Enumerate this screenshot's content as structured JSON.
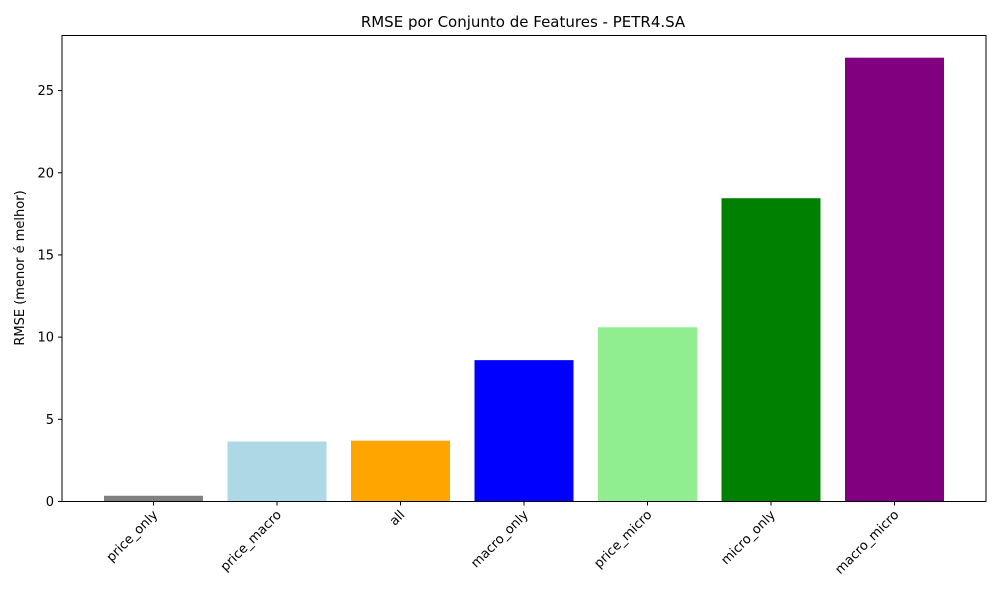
{
  "chart_data": {
    "type": "bar",
    "title": "RMSE por Conjunto de Features - PETR4.SA",
    "xlabel": "",
    "ylabel": "RMSE (menor é melhor)",
    "categories": [
      "price_only",
      "price_macro",
      "all",
      "macro_only",
      "price_micro",
      "micro_only",
      "macro_micro"
    ],
    "values": [
      0.35,
      3.65,
      3.7,
      8.6,
      10.6,
      18.45,
      27.0
    ],
    "colors": [
      "#808080",
      "#add8e6",
      "#ffa500",
      "#0000ff",
      "#90ee90",
      "#008000",
      "#800080"
    ],
    "ylim": [
      0,
      28.35
    ],
    "yticks": [
      0,
      5,
      10,
      15,
      20,
      25
    ],
    "grid": false,
    "legend": "none"
  }
}
